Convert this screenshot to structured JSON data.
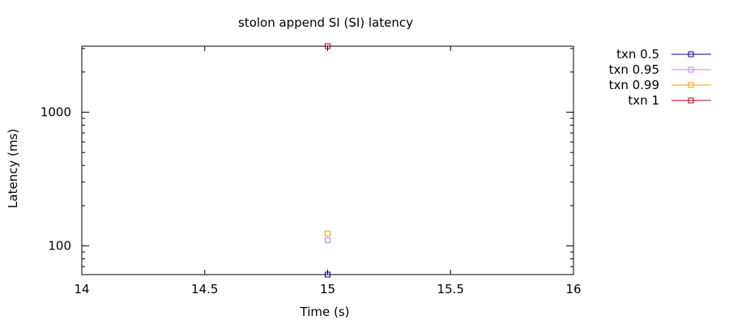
{
  "chart_data": {
    "type": "scatter",
    "title": "stolon append SI (SI)  latency",
    "xlabel": "Time (s)",
    "ylabel": "Latency (ms)",
    "xlim": [
      14,
      16
    ],
    "ylim": [
      61,
      3120
    ],
    "yscale": "log",
    "x_ticks": [
      {
        "value": 14,
        "label": "14"
      },
      {
        "value": 14.5,
        "label": "14.5"
      },
      {
        "value": 15,
        "label": "15"
      },
      {
        "value": 15.5,
        "label": "15.5"
      },
      {
        "value": 16,
        "label": "16"
      }
    ],
    "y_ticks": [
      {
        "value": 100,
        "label": "100"
      },
      {
        "value": 1000,
        "label": "1000"
      }
    ],
    "grid": false,
    "legend": "outside-top-right",
    "series": [
      {
        "name": "txn 0.5",
        "color": "#00008b",
        "points": [
          {
            "x": 15,
            "y": 61
          }
        ]
      },
      {
        "name": "txn 0.95",
        "color": "#c080ff",
        "points": [
          {
            "x": 15,
            "y": 110
          }
        ]
      },
      {
        "name": "txn 0.99",
        "color": "#e8a000",
        "points": [
          {
            "x": 15,
            "y": 124
          }
        ]
      },
      {
        "name": "txn 1",
        "color": "#c00000",
        "points": [
          {
            "x": 15,
            "y": 3120
          }
        ]
      }
    ]
  }
}
